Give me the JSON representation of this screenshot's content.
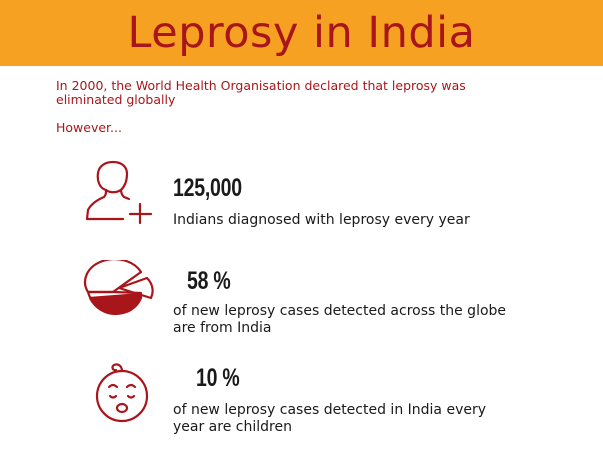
{
  "header": {
    "title": "Leprosy in India",
    "background": "#f7a122",
    "title_color": "#a8161b"
  },
  "intro": {
    "text": "In 2000, the World Health Organisation declared that leprosy was eliminated globally",
    "however": "However..."
  },
  "stats": [
    {
      "icon": "person-plus-icon",
      "value": "125,000",
      "description": "Indians diagnosed with leprosy every year"
    },
    {
      "icon": "pie-chart-icon",
      "value": "58 %",
      "description": "of new leprosy cases detected across the globe are from India"
    },
    {
      "icon": "baby-face-icon",
      "value": "10 %",
      "description": "of new leprosy cases detected in India every year are children"
    }
  ],
  "colors": {
    "accent": "#a8161b",
    "text": "#1a1a1a"
  }
}
